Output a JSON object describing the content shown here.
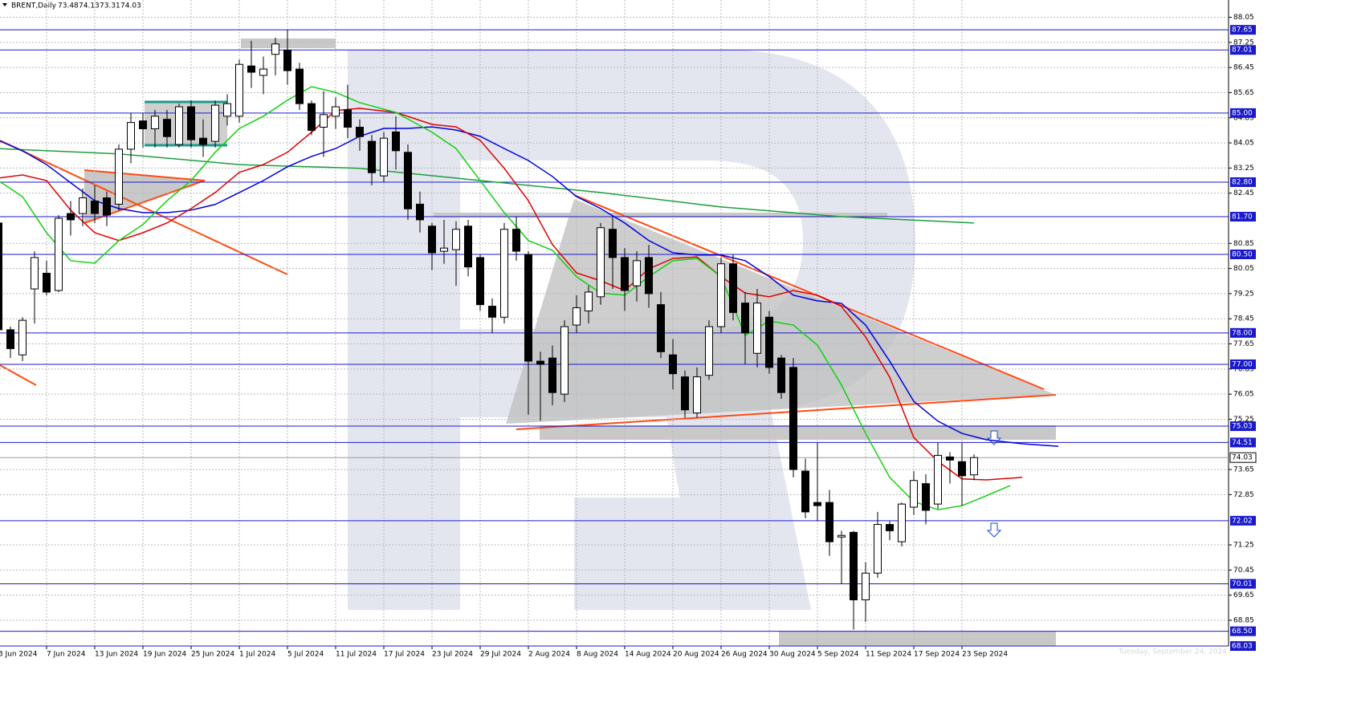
{
  "chart_data": {
    "type": "candlestick",
    "title": "BRENT,Daily",
    "footer": "Tuesday, September 24, 2024",
    "categories": [
      "3 Jun 2024",
      null,
      null,
      null,
      "7 Jun 2024",
      null,
      null,
      null,
      "13 Jun 2024",
      null,
      null,
      null,
      "19 Jun 2024",
      null,
      null,
      null,
      "25 Jun 2024",
      null,
      null,
      null,
      "1 Jul 2024",
      null,
      null,
      null,
      "5 Jul 2024",
      null,
      null,
      null,
      "11 Jul 2024",
      null,
      null,
      null,
      "17 Jul 2024",
      null,
      null,
      null,
      "23 Jul 2024",
      null,
      null,
      null,
      "29 Jul 2024",
      null,
      null,
      null,
      "2 Aug 2024",
      null,
      null,
      null,
      "8 Aug 2024",
      null,
      null,
      null,
      "14 Aug 2024",
      null,
      null,
      null,
      "20 Aug 2024",
      null,
      null,
      null,
      "26 Aug 2024",
      null,
      null,
      null,
      "30 Aug 2024",
      null,
      null,
      null,
      "5 Sep 2024",
      null,
      null,
      null,
      "11 Sep 2024",
      null,
      null,
      null,
      "17 Sep 2024",
      null,
      null,
      null,
      "23 Sep 2024",
      null
    ],
    "open": [
      81.5,
      78.1,
      77.3,
      79.4,
      79.9,
      79.35,
      81.8,
      81.8,
      82.2,
      82.3,
      82.1,
      83.85,
      84.75,
      84.5,
      84.8,
      84.0,
      85.2,
      84.2,
      84.1,
      84.9,
      84.9,
      86.5,
      86.2,
      86.87,
      87.0,
      86.4,
      85.3,
      84.55,
      84.9,
      85.1,
      84.55,
      84.1,
      83.0,
      84.4,
      83.75,
      82.1,
      81.4,
      80.6,
      80.65,
      81.4,
      80.4,
      78.85,
      78.5,
      81.3,
      80.5,
      77.1,
      77.2,
      76.05,
      78.25,
      78.7,
      79.15,
      81.3,
      80.4,
      79.5,
      80.4,
      78.9,
      77.3,
      76.6,
      75.45,
      76.65,
      78.2,
      80.2,
      78.95,
      77.35,
      78.5,
      77.2,
      76.9,
      73.6,
      72.6,
      72.6,
      71.5,
      71.65,
      69.5,
      70.35,
      71.9,
      71.35,
      72.45,
      73.2,
      72.55,
      74.05,
      73.9,
      73.48
    ],
    "high": [
      81.7,
      78.2,
      78.5,
      80.6,
      80.3,
      81.75,
      82.2,
      82.6,
      82.7,
      82.5,
      84.0,
      85.0,
      85.0,
      85.1,
      85.1,
      85.3,
      85.4,
      84.8,
      85.4,
      85.6,
      86.7,
      87.3,
      86.8,
      87.4,
      87.65,
      86.6,
      85.4,
      85.7,
      85.5,
      85.9,
      84.8,
      84.3,
      84.4,
      84.9,
      84.0,
      82.5,
      81.5,
      81.6,
      81.55,
      81.6,
      80.5,
      79.1,
      81.5,
      81.7,
      80.6,
      77.4,
      77.6,
      78.4,
      79.2,
      79.5,
      81.5,
      81.7,
      80.7,
      80.6,
      80.8,
      79.3,
      77.8,
      76.8,
      76.9,
      78.4,
      80.4,
      80.5,
      79.3,
      79.4,
      78.7,
      77.3,
      77.2,
      74.0,
      74.5,
      73.0,
      71.7,
      71.7,
      70.7,
      72.3,
      72.0,
      72.6,
      73.6,
      73.5,
      74.5,
      74.2,
      74.5,
      74.13
    ],
    "low": [
      77.9,
      77.2,
      77.1,
      78.3,
      79.2,
      79.3,
      81.1,
      81.4,
      81.5,
      81.4,
      81.9,
      83.4,
      83.9,
      83.9,
      83.9,
      83.9,
      83.9,
      83.6,
      83.9,
      84.6,
      84.7,
      85.8,
      85.6,
      86.2,
      85.9,
      85.1,
      84.3,
      83.6,
      84.5,
      84.2,
      83.8,
      82.7,
      82.8,
      83.2,
      81.6,
      81.2,
      80.0,
      80.2,
      79.5,
      79.8,
      78.7,
      78.0,
      78.3,
      80.3,
      75.4,
      75.2,
      75.7,
      75.8,
      78.0,
      78.3,
      78.9,
      79.4,
      78.7,
      79.0,
      78.8,
      77.2,
      76.2,
      75.3,
      75.3,
      76.5,
      78.0,
      78.4,
      77.0,
      76.9,
      76.7,
      75.9,
      73.4,
      72.1,
      72.0,
      70.9,
      70.0,
      68.55,
      68.8,
      70.2,
      71.4,
      71.2,
      72.2,
      71.9,
      72.4,
      73.2,
      72.5,
      73.31
    ],
    "close": [
      78.1,
      77.5,
      78.4,
      80.4,
      79.3,
      81.65,
      81.6,
      82.3,
      81.8,
      81.75,
      83.85,
      84.7,
      84.5,
      84.9,
      84.25,
      85.2,
      84.15,
      84.0,
      85.25,
      85.3,
      86.55,
      86.3,
      86.4,
      87.2,
      86.35,
      85.3,
      84.45,
      84.95,
      85.2,
      84.55,
      84.25,
      83.1,
      84.2,
      83.8,
      81.95,
      81.6,
      80.55,
      80.7,
      81.3,
      80.1,
      78.9,
      78.5,
      81.3,
      80.6,
      77.1,
      77.0,
      76.1,
      78.2,
      78.8,
      79.3,
      81.35,
      80.4,
      79.35,
      80.3,
      79.25,
      77.4,
      76.7,
      75.55,
      76.6,
      78.2,
      80.2,
      78.65,
      78.0,
      78.95,
      76.9,
      76.1,
      73.65,
      72.3,
      72.5,
      71.35,
      71.55,
      69.5,
      70.35,
      71.9,
      71.7,
      72.55,
      73.3,
      72.35,
      74.1,
      73.95,
      73.45,
      74.03
    ],
    "up_color": "#ffffff",
    "down_color": "#000000",
    "ylim": [
      68.03,
      88.6
    ],
    "yticks": [
      88.05,
      87.25,
      86.45,
      85.65,
      84.85,
      84.05,
      83.25,
      82.45,
      80.85,
      80.05,
      79.25,
      78.45,
      77.65,
      76.85,
      76.05,
      75.25,
      73.65,
      72.85,
      71.25,
      70.45,
      69.65,
      68.85
    ],
    "grid": true,
    "levels_color": "#1a1acc",
    "levels": [
      87.65,
      87.01,
      {
        "value": 85,
        "label": "85.00"
      },
      {
        "value": 82.8,
        "label": "82.80"
      },
      {
        "value": 81.7,
        "label": "81.70"
      },
      {
        "value": 80.5,
        "label": "80.50"
      },
      {
        "value": 78,
        "label": "78.00"
      },
      {
        "value": 77,
        "label": "77.00"
      },
      75.03,
      74.51,
      72.02,
      70.01,
      {
        "value": 68.5,
        "label": "68.50"
      },
      68.03
    ],
    "overlays": [
      {
        "color": "#1e9e3c",
        "x": [
          0,
          10,
          20,
          30,
          40,
          50,
          60,
          70,
          81
        ],
        "values": [
          83.87,
          83.7,
          83.36,
          83.24,
          82.85,
          82.47,
          82.01,
          81.7,
          81.5
        ]
      },
      {
        "color": "#0000dd",
        "x": [
          0,
          2,
          4,
          6,
          8,
          10,
          12,
          14,
          16,
          18,
          20,
          22,
          24,
          26,
          28,
          30,
          32,
          34,
          36,
          38,
          40,
          42,
          44,
          46,
          48,
          50,
          52,
          54,
          56,
          58,
          60,
          62,
          64,
          66,
          68,
          70,
          72,
          74,
          76,
          78,
          80,
          82,
          85,
          88
        ],
        "values": [
          84.13,
          83.8,
          83.36,
          82.78,
          82.21,
          81.96,
          81.83,
          81.83,
          81.91,
          82.09,
          82.47,
          82.85,
          83.29,
          83.62,
          83.87,
          84.26,
          84.51,
          84.51,
          84.56,
          84.46,
          84.26,
          83.87,
          83.49,
          82.98,
          82.34,
          81.96,
          81.5,
          80.94,
          80.55,
          80.48,
          80.48,
          80.3,
          79.79,
          79.2,
          79.02,
          78.94,
          78.25,
          77.1,
          75.82,
          75.19,
          74.8,
          74.6,
          74.47,
          74.39
        ]
      },
      {
        "color": "#e00000",
        "x": [
          0,
          2,
          4,
          6,
          8,
          10,
          12,
          14,
          16,
          18,
          20,
          22,
          24,
          26,
          28,
          30,
          33,
          36,
          38,
          40,
          42,
          44,
          46,
          48,
          50,
          52,
          54,
          56,
          58,
          60,
          62,
          64,
          66,
          68,
          70,
          72,
          74,
          76,
          78,
          80,
          82,
          85
        ],
        "values": [
          82.93,
          83.03,
          82.85,
          81.91,
          81.19,
          80.94,
          81.19,
          81.5,
          81.96,
          82.47,
          83.11,
          83.36,
          83.75,
          84.39,
          85.08,
          85.15,
          85.02,
          84.64,
          84.56,
          84.13,
          83.24,
          82.21,
          80.81,
          79.91,
          79.66,
          79.35,
          80.04,
          80.37,
          80.42,
          79.79,
          79.27,
          79.15,
          79.35,
          79.2,
          78.84,
          77.87,
          76.59,
          74.67,
          73.91,
          73.35,
          73.32,
          73.4
        ]
      },
      {
        "color": "#10d010",
        "x": [
          0,
          2,
          4,
          6,
          8,
          10,
          12,
          14,
          16,
          18,
          20,
          22,
          24,
          26,
          28,
          30,
          33,
          36,
          38,
          40,
          42,
          44,
          46,
          48,
          50,
          52,
          54,
          56,
          58,
          60,
          62,
          64,
          66,
          68,
          70,
          72,
          74,
          76,
          78,
          80,
          82,
          84
        ],
        "values": [
          82.85,
          82.34,
          81.19,
          80.3,
          80.22,
          80.94,
          81.45,
          82.21,
          82.85,
          83.75,
          84.51,
          84.9,
          85.41,
          85.84,
          85.66,
          85.33,
          85.02,
          84.39,
          83.87,
          82.85,
          81.83,
          80.94,
          80.63,
          79.79,
          79.27,
          79.2,
          79.79,
          80.3,
          80.37,
          79.79,
          77.92,
          78.38,
          78.25,
          77.61,
          76.34,
          74.8,
          73.4,
          72.63,
          72.37,
          72.5,
          72.81,
          73.14
        ]
      }
    ]
  }
}
